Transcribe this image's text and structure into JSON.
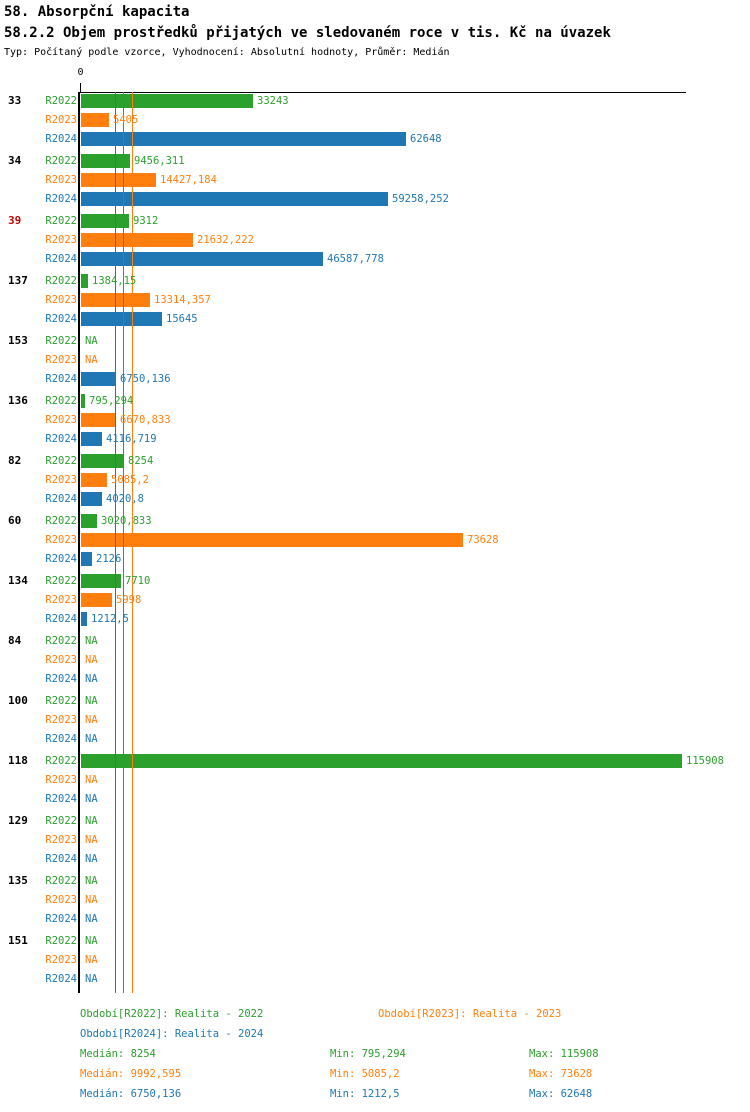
{
  "header": {
    "title1": "58. Absorpční kapacita",
    "title2": "58.2.2 Objem prostředků přijatých ve sledovaném roce v tis. Kč na úvazek",
    "subtitle": "Typ: Počítaný podle vzorce, Vyhodnocení: Absolutní hodnoty, Průměr: Medián"
  },
  "axis": {
    "zero_label": "0"
  },
  "colors": {
    "r2022": "#2ca02c",
    "r2023": "#ff7f0e",
    "r2024": "#1f77b4",
    "highlight_id": "#cc0000",
    "text": "#000000",
    "axis": "#000000"
  },
  "chart_data": {
    "type": "bar",
    "orientation": "horizontal",
    "xlim": [
      0,
      115908
    ],
    "grid": false,
    "series_labels": [
      "R2022",
      "R2023",
      "R2024"
    ],
    "na_text": "NA",
    "medians": [
      {
        "series": "R2022",
        "value": 8254,
        "label": "8254"
      },
      {
        "series": "R2023",
        "value": 9992.595,
        "label": "9992,595"
      },
      {
        "series": "R2024",
        "value": 6750.136,
        "label": "6750,136"
      }
    ],
    "groups": [
      {
        "id": "33",
        "highlight": false,
        "values": [
          33243,
          5405,
          62648
        ],
        "labels": [
          "33243",
          "5405",
          "62648"
        ]
      },
      {
        "id": "34",
        "highlight": false,
        "values": [
          9456.311,
          14427.184,
          59258.252
        ],
        "labels": [
          "9456,311",
          "14427,184",
          "59258,252"
        ]
      },
      {
        "id": "39",
        "highlight": true,
        "values": [
          9312,
          21632.222,
          46587.778
        ],
        "labels": [
          "9312",
          "21632,222",
          "46587,778"
        ]
      },
      {
        "id": "137",
        "highlight": false,
        "values": [
          1384.15,
          13314.357,
          15645
        ],
        "labels": [
          "1384,15",
          "13314,357",
          "15645"
        ]
      },
      {
        "id": "153",
        "highlight": false,
        "values": [
          null,
          null,
          6750.136
        ],
        "labels": [
          "NA",
          "NA",
          "6750,136"
        ]
      },
      {
        "id": "136",
        "highlight": false,
        "values": [
          795.294,
          6670.833,
          4116.719
        ],
        "labels": [
          "795,294",
          "6670,833",
          "4116,719"
        ]
      },
      {
        "id": "82",
        "highlight": false,
        "values": [
          8254,
          5085.2,
          4020.8
        ],
        "labels": [
          "8254",
          "5085,2",
          "4020,8"
        ]
      },
      {
        "id": "60",
        "highlight": false,
        "values": [
          3020.833,
          73628,
          2126
        ],
        "labels": [
          "3020,833",
          "73628",
          "2126"
        ]
      },
      {
        "id": "134",
        "highlight": false,
        "values": [
          7710,
          5998,
          1212.5
        ],
        "labels": [
          "7710",
          "5998",
          "1212,5"
        ]
      },
      {
        "id": "84",
        "highlight": false,
        "values": [
          null,
          null,
          null
        ],
        "labels": [
          "NA",
          "NA",
          "NA"
        ]
      },
      {
        "id": "100",
        "highlight": false,
        "values": [
          null,
          null,
          null
        ],
        "labels": [
          "NA",
          "NA",
          "NA"
        ]
      },
      {
        "id": "118",
        "highlight": false,
        "values": [
          115908,
          null,
          null
        ],
        "labels": [
          "115908",
          "NA",
          "NA"
        ]
      },
      {
        "id": "129",
        "highlight": false,
        "values": [
          null,
          null,
          null
        ],
        "labels": [
          "NA",
          "NA",
          "NA"
        ]
      },
      {
        "id": "135",
        "highlight": false,
        "values": [
          null,
          null,
          null
        ],
        "labels": [
          "NA",
          "NA",
          "NA"
        ]
      },
      {
        "id": "151",
        "highlight": false,
        "values": [
          null,
          null,
          null
        ],
        "labels": [
          "NA",
          "NA",
          "NA"
        ]
      }
    ]
  },
  "footer": {
    "legend": [
      {
        "series": "R2022",
        "text": "Období[R2022]: Realita - 2022"
      },
      {
        "series": "R2023",
        "text": "Období[R2023]: Realita - 2023"
      },
      {
        "series": "R2024",
        "text": "Období[R2024]: Realita - 2024"
      }
    ],
    "stats": [
      {
        "series": "R2022",
        "median": "Medián: 8254",
        "min": "Min: 795,294",
        "max": "Max: 115908"
      },
      {
        "series": "R2023",
        "median": "Medián: 9992,595",
        "min": "Min: 5085,2",
        "max": "Max: 73628"
      },
      {
        "series": "R2024",
        "median": "Medián: 6750,136",
        "min": "Min: 1212,5",
        "max": "Max: 62648"
      }
    ]
  }
}
